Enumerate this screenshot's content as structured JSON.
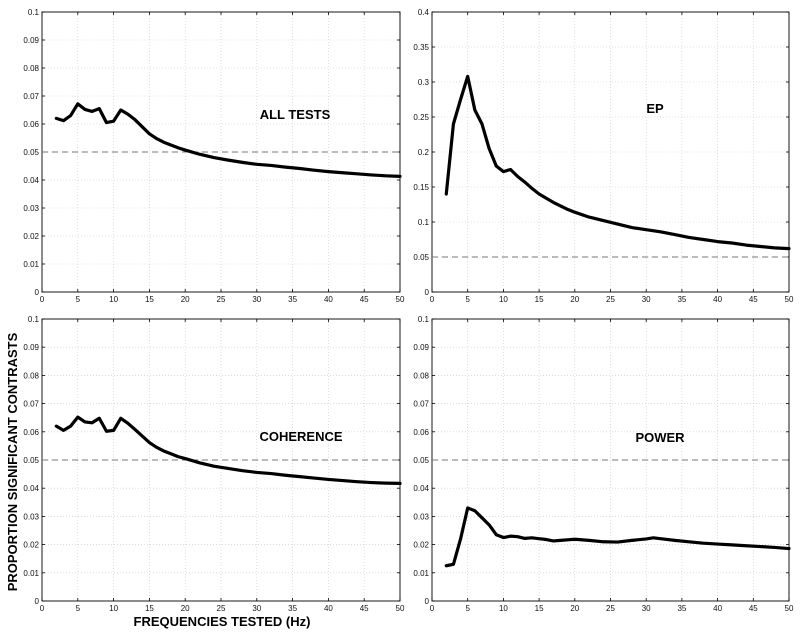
{
  "figure": {
    "ylabel": "PROPORTION SIGNIFICANT CONTRASTS",
    "xlabel": "FREQUENCIES TESTED (Hz)"
  },
  "chart_data": [
    {
      "type": "line",
      "label": "ALL TESTS",
      "xlim": [
        0,
        50
      ],
      "ylim": [
        0,
        0.1
      ],
      "xticks": [
        "0",
        "5",
        "10",
        "15",
        "20",
        "25",
        "30",
        "35",
        "40",
        "45",
        "50"
      ],
      "yticks": [
        "0",
        "0.01",
        "0.02",
        "0.03",
        "0.04",
        "0.05",
        "0.06",
        "0.07",
        "0.08",
        "0.09",
        "0.1"
      ],
      "grid": true,
      "reference_line": 0.05,
      "x": [
        2,
        3,
        4,
        5,
        6,
        7,
        8,
        9,
        10,
        11,
        12,
        13,
        14,
        15,
        16,
        17,
        18,
        19,
        20,
        22,
        24,
        26,
        28,
        30,
        32,
        34,
        36,
        38,
        40,
        42,
        44,
        46,
        48,
        50
      ],
      "values": [
        0.062,
        0.0612,
        0.063,
        0.0672,
        0.0652,
        0.0645,
        0.0655,
        0.0605,
        0.061,
        0.065,
        0.0635,
        0.0615,
        0.059,
        0.0565,
        0.0548,
        0.0535,
        0.0525,
        0.0515,
        0.0507,
        0.0492,
        0.048,
        0.0471,
        0.0463,
        0.0456,
        0.0452,
        0.0446,
        0.0441,
        0.0435,
        0.043,
        0.0426,
        0.0422,
        0.0418,
        0.0415,
        0.0413
      ]
    },
    {
      "type": "line",
      "label": "EP",
      "xlim": [
        0,
        50
      ],
      "ylim": [
        0,
        0.4
      ],
      "xticks": [
        "0",
        "5",
        "10",
        "15",
        "20",
        "25",
        "30",
        "35",
        "40",
        "45",
        "50"
      ],
      "yticks": [
        "0",
        "0.05",
        "0.1",
        "0.15",
        "0.2",
        "0.25",
        "0.3",
        "0.35",
        "0.4"
      ],
      "grid": true,
      "reference_line": 0.05,
      "x": [
        2,
        3,
        4,
        5,
        6,
        7,
        8,
        9,
        10,
        11,
        12,
        13,
        14,
        15,
        16,
        17,
        18,
        19,
        20,
        22,
        24,
        26,
        28,
        30,
        32,
        34,
        36,
        38,
        40,
        42,
        44,
        46,
        48,
        50
      ],
      "values": [
        0.14,
        0.24,
        0.275,
        0.308,
        0.26,
        0.24,
        0.205,
        0.18,
        0.172,
        0.175,
        0.165,
        0.157,
        0.148,
        0.14,
        0.134,
        0.128,
        0.123,
        0.118,
        0.114,
        0.107,
        0.102,
        0.097,
        0.092,
        0.089,
        0.086,
        0.082,
        0.078,
        0.075,
        0.072,
        0.07,
        0.067,
        0.065,
        0.063,
        0.062
      ]
    },
    {
      "type": "line",
      "label": "COHERENCE",
      "xlim": [
        0,
        50
      ],
      "ylim": [
        0,
        0.1
      ],
      "xticks": [
        "0",
        "5",
        "10",
        "15",
        "20",
        "25",
        "30",
        "35",
        "40",
        "45",
        "50"
      ],
      "yticks": [
        "0",
        "0.01",
        "0.02",
        "0.03",
        "0.04",
        "0.05",
        "0.06",
        "0.07",
        "0.08",
        "0.09",
        "0.1"
      ],
      "grid": true,
      "reference_line": 0.05,
      "x": [
        2,
        3,
        4,
        5,
        6,
        7,
        8,
        9,
        10,
        11,
        12,
        13,
        14,
        15,
        16,
        17,
        18,
        19,
        20,
        22,
        24,
        26,
        28,
        30,
        32,
        34,
        36,
        38,
        40,
        42,
        44,
        46,
        48,
        50
      ],
      "values": [
        0.062,
        0.0605,
        0.062,
        0.0652,
        0.0635,
        0.0632,
        0.0648,
        0.0602,
        0.0605,
        0.0648,
        0.063,
        0.0608,
        0.0585,
        0.0562,
        0.0545,
        0.0532,
        0.0522,
        0.0512,
        0.0505,
        0.049,
        0.0478,
        0.047,
        0.0462,
        0.0456,
        0.0452,
        0.0446,
        0.0441,
        0.0436,
        0.0431,
        0.0427,
        0.0423,
        0.042,
        0.0418,
        0.0417
      ]
    },
    {
      "type": "line",
      "label": "POWER",
      "xlim": [
        0,
        50
      ],
      "ylim": [
        0,
        0.1
      ],
      "xticks": [
        "0",
        "5",
        "10",
        "15",
        "20",
        "25",
        "30",
        "35",
        "40",
        "45",
        "50"
      ],
      "yticks": [
        "0",
        "0.01",
        "0.02",
        "0.03",
        "0.04",
        "0.05",
        "0.06",
        "0.07",
        "0.08",
        "0.09",
        "0.1"
      ],
      "grid": true,
      "reference_line": 0.05,
      "x": [
        2,
        3,
        4,
        5,
        6,
        7,
        8,
        9,
        10,
        11,
        12,
        13,
        14,
        15,
        16,
        17,
        18,
        19,
        20,
        22,
        24,
        26,
        28,
        30,
        31,
        32,
        34,
        36,
        38,
        40,
        42,
        44,
        46,
        48,
        50
      ],
      "values": [
        0.0125,
        0.013,
        0.022,
        0.033,
        0.032,
        0.0295,
        0.027,
        0.0235,
        0.0225,
        0.023,
        0.0228,
        0.0222,
        0.0224,
        0.0221,
        0.0218,
        0.0213,
        0.0215,
        0.0217,
        0.0219,
        0.0215,
        0.021,
        0.0209,
        0.0215,
        0.022,
        0.0224,
        0.0221,
        0.0215,
        0.021,
        0.0205,
        0.0202,
        0.0199,
        0.0196,
        0.0193,
        0.019,
        0.0186
      ]
    }
  ]
}
